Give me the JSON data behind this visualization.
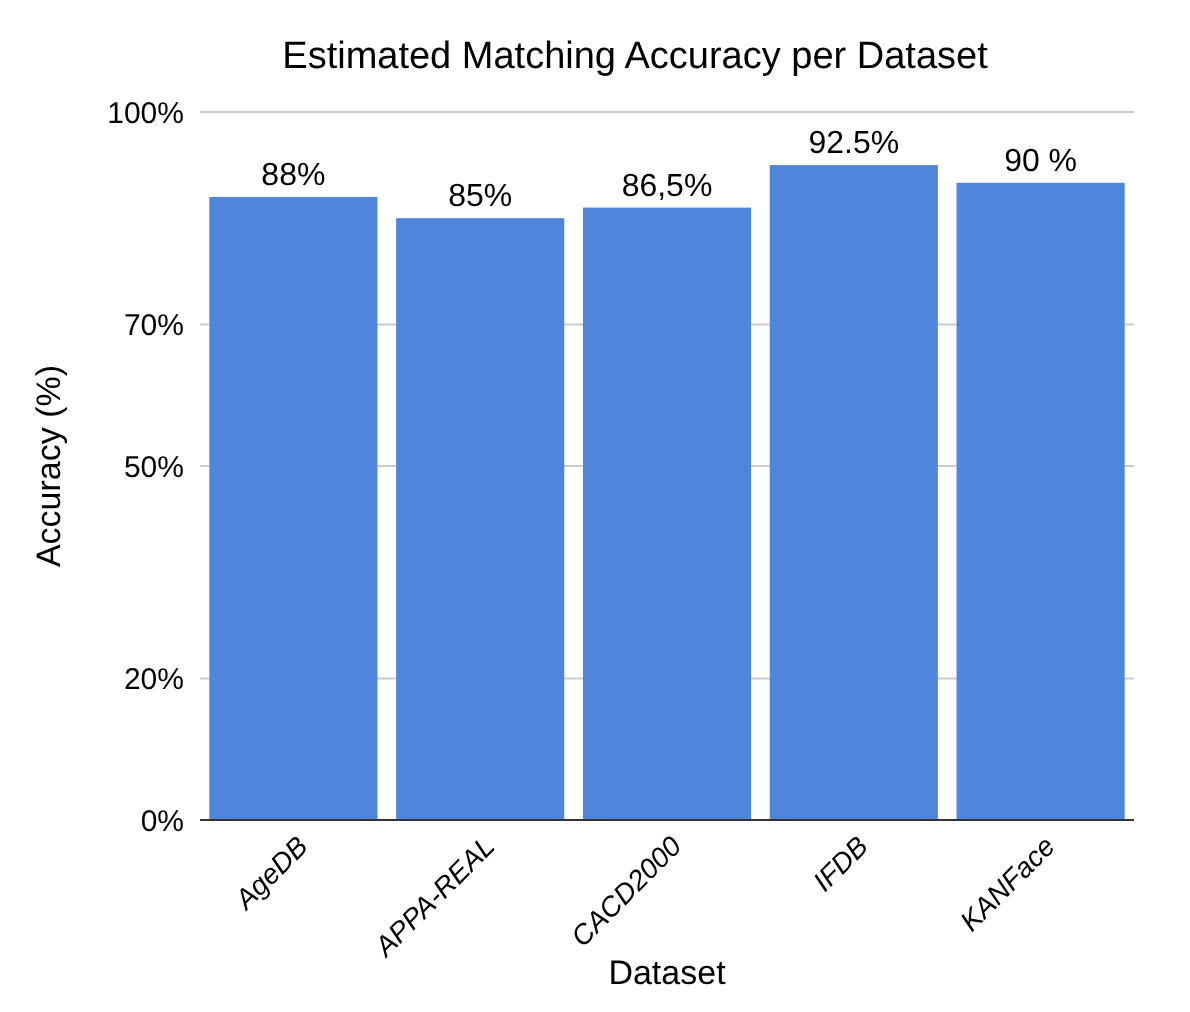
{
  "chart_data": {
    "type": "bar",
    "title": "Estimated Matching Accuracy per Dataset",
    "xlabel": "Dataset",
    "ylabel": "Accuracy (%)",
    "categories": [
      "AgeDB",
      "APPA-REAL",
      "CACD2000",
      "IFDB",
      "KANFace"
    ],
    "values": [
      88,
      85,
      86.5,
      92.5,
      90
    ],
    "value_labels": [
      "88%",
      "85%",
      "86,5%",
      "92.5%",
      "90 %"
    ],
    "color": "#4f86dc",
    "ylim": [
      0,
      100
    ],
    "yticks": [
      {
        "value": 0,
        "label": "0%"
      },
      {
        "value": 20,
        "label": "20%"
      },
      {
        "value": 50,
        "label": "50%"
      },
      {
        "value": 70,
        "label": "70%"
      },
      {
        "value": 100,
        "label": "100%"
      }
    ],
    "grid": "y"
  }
}
